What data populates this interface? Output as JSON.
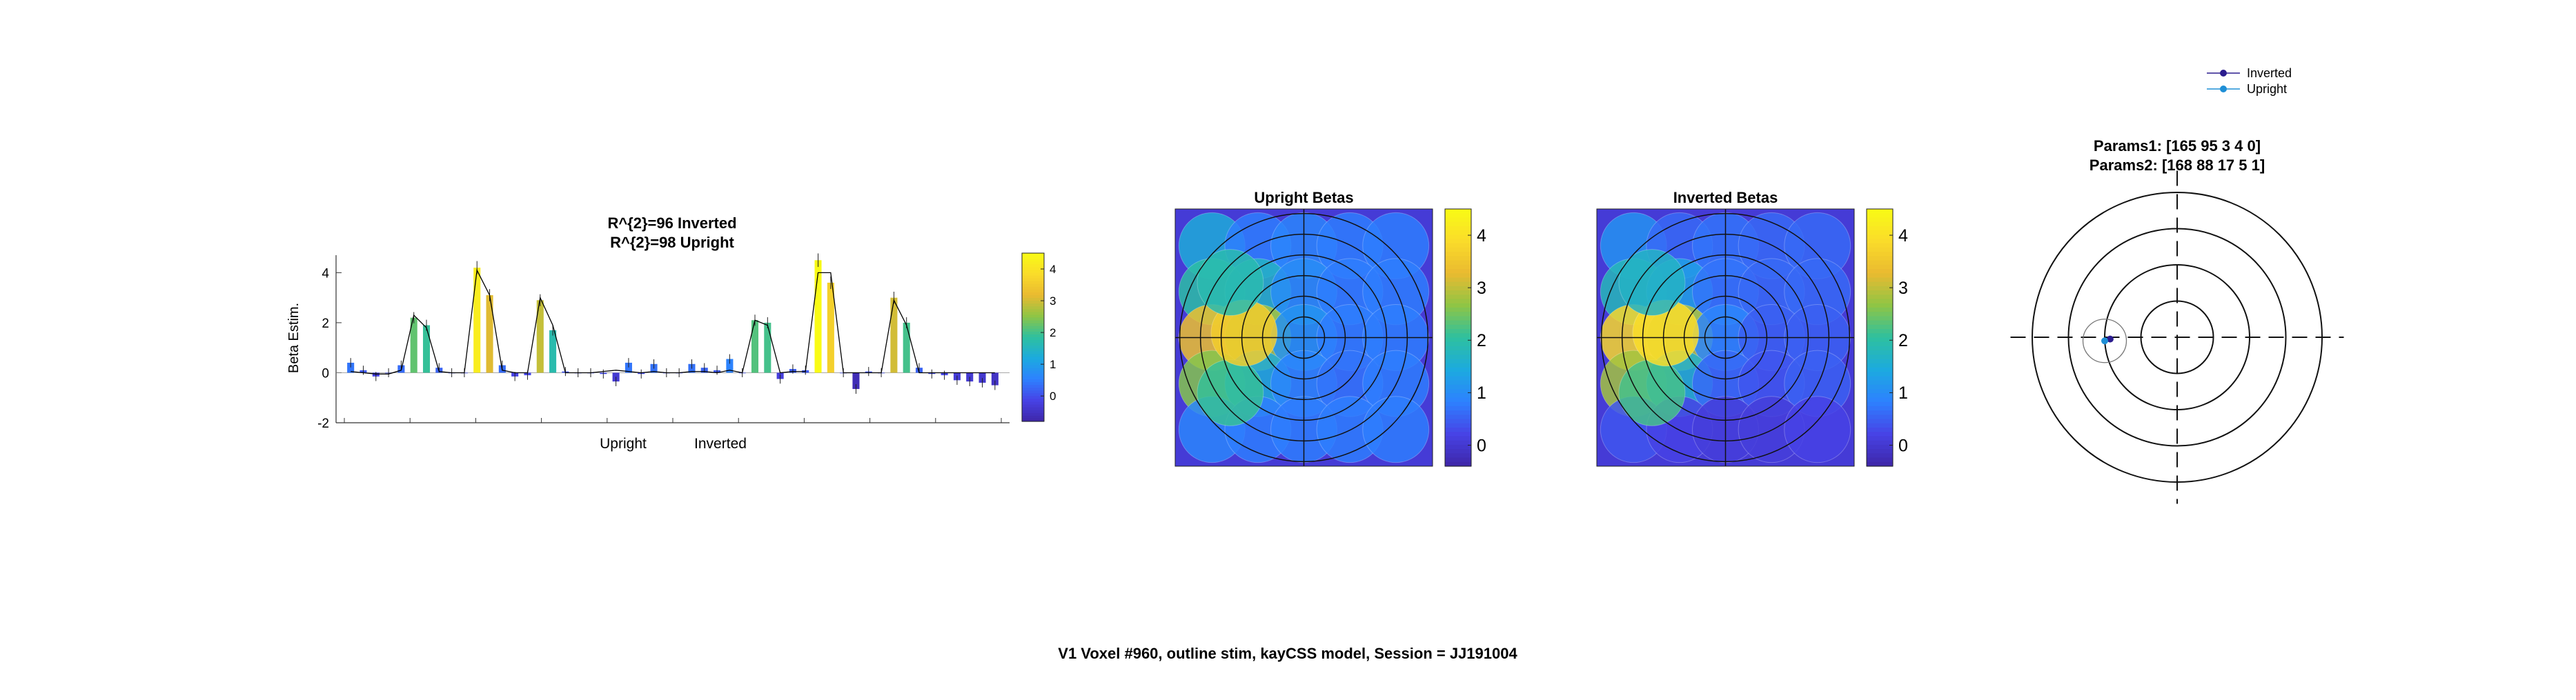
{
  "figure": {
    "suptitle": "V1 Voxel #960, outline stim, kayCSS model, Session = JJ191004"
  },
  "colors": {
    "parula": [
      "#3e26a8",
      "#4743e6",
      "#2d81ff",
      "#1caadf",
      "#2ec09f",
      "#8fc545",
      "#eaba30",
      "#fadc2a",
      "#f9fb15"
    ],
    "inverted_line": "#2b1c8e",
    "upright_line": "#1f8fd6",
    "fit_line": "#000000"
  },
  "chart_data": [
    {
      "type": "bar",
      "name": "beta-bars",
      "title_lines": [
        "R^{2}=96 Inverted",
        "R^{2}=98 Upright"
      ],
      "xlabel": "",
      "ylabel": "Beta Estim.",
      "ylim": [
        -2,
        4.7
      ],
      "yticks": [
        -2,
        0,
        2,
        4
      ],
      "group_labels": [
        "Upright",
        "Inverted"
      ],
      "colorbar": {
        "ticks": [
          0,
          1,
          2,
          3,
          4
        ],
        "clim": [
          -0.8,
          4.5
        ]
      },
      "values": [
        0.4,
        0.1,
        -0.15,
        0.0,
        0.3,
        2.2,
        1.9,
        0.2,
        0.0,
        0.0,
        4.2,
        3.1,
        0.3,
        -0.15,
        -0.1,
        2.9,
        1.7,
        0.05,
        0.0,
        0.0,
        -0.05,
        -0.35,
        0.4,
        -0.05,
        0.35,
        0.0,
        0.0,
        0.35,
        0.2,
        0.1,
        0.55,
        0.0,
        2.1,
        2.0,
        -0.25,
        0.15,
        0.1,
        4.5,
        3.6,
        0.0,
        -0.65,
        0.05,
        0.0,
        3.0,
        2.0,
        0.2,
        -0.05,
        -0.1,
        -0.3,
        -0.35,
        -0.4,
        -0.5
      ],
      "fit": [
        0.05,
        0.0,
        -0.05,
        -0.05,
        0.1,
        2.3,
        1.8,
        0.05,
        0.0,
        0.0,
        4.1,
        3.1,
        0.1,
        0.0,
        0.0,
        3.0,
        1.9,
        0.0,
        0.0,
        0.0,
        0.05,
        0.1,
        0.05,
        0.0,
        0.05,
        0.0,
        0.0,
        0.05,
        0.05,
        0.0,
        0.1,
        0.0,
        2.1,
        1.9,
        0.0,
        0.05,
        0.05,
        4.0,
        4.0,
        0.0,
        0.0,
        0.0,
        0.0,
        2.9,
        1.9,
        0.0,
        0.0,
        0.0,
        0.0,
        0.0,
        0.0,
        0.0
      ]
    },
    {
      "type": "heatmap",
      "name": "upright-betas",
      "title": "Upright Betas",
      "colorbar": {
        "ticks": [
          0,
          1,
          2,
          3,
          4
        ],
        "clim": [
          -0.4,
          4.5
        ]
      },
      "discs": [
        {
          "x": -2,
          "y": 2,
          "v": 1.5
        },
        {
          "x": -1,
          "y": 2,
          "v": 0.8
        },
        {
          "x": 0,
          "y": 2,
          "v": 0.9
        },
        {
          "x": 1,
          "y": 2,
          "v": 0.8
        },
        {
          "x": 2,
          "y": 2,
          "v": 0.8
        },
        {
          "x": -2,
          "y": 1,
          "v": 2.0
        },
        {
          "x": -1,
          "y": 1,
          "v": 1.7
        },
        {
          "x": 0,
          "y": 1,
          "v": 1.0
        },
        {
          "x": 1,
          "y": 1,
          "v": 0.8
        },
        {
          "x": 2,
          "y": 1,
          "v": 0.8
        },
        {
          "x": -2,
          "y": 0,
          "v": 3.4
        },
        {
          "x": -1,
          "y": 0,
          "v": 2.8
        },
        {
          "x": 0,
          "y": 0,
          "v": 1.1
        },
        {
          "x": 1,
          "y": 0,
          "v": 0.8
        },
        {
          "x": 2,
          "y": 0,
          "v": 0.8
        },
        {
          "x": -2,
          "y": -1,
          "v": 2.6
        },
        {
          "x": -1,
          "y": -1,
          "v": 1.5
        },
        {
          "x": 0,
          "y": -1,
          "v": 0.9
        },
        {
          "x": 1,
          "y": -1,
          "v": 0.7
        },
        {
          "x": 2,
          "y": -1,
          "v": 0.8
        },
        {
          "x": -2,
          "y": -2,
          "v": 0.9
        },
        {
          "x": -1,
          "y": -2,
          "v": 0.8
        },
        {
          "x": 0,
          "y": -2,
          "v": 0.8
        },
        {
          "x": 1,
          "y": -2,
          "v": 0.8
        },
        {
          "x": 2,
          "y": -2,
          "v": 0.8
        },
        {
          "x": -1.6,
          "y": -1.2,
          "v": 2.1
        },
        {
          "x": -1.3,
          "y": 0.1,
          "v": 3.6
        },
        {
          "x": -1.6,
          "y": 1.2,
          "v": 1.9
        }
      ]
    },
    {
      "type": "heatmap",
      "name": "inverted-betas",
      "title": "Inverted Betas",
      "colorbar": {
        "ticks": [
          0,
          1,
          2,
          3,
          4
        ],
        "clim": [
          -0.4,
          4.5
        ]
      },
      "discs": [
        {
          "x": -2,
          "y": 2,
          "v": 1.1
        },
        {
          "x": -1,
          "y": 2,
          "v": 0.6
        },
        {
          "x": 0,
          "y": 2,
          "v": 0.7
        },
        {
          "x": 1,
          "y": 2,
          "v": 0.6
        },
        {
          "x": 2,
          "y": 2,
          "v": 0.6
        },
        {
          "x": -2,
          "y": 1,
          "v": 1.8
        },
        {
          "x": -1,
          "y": 1,
          "v": 1.3
        },
        {
          "x": 0,
          "y": 1,
          "v": 0.7
        },
        {
          "x": 1,
          "y": 1,
          "v": 0.6
        },
        {
          "x": 2,
          "y": 1,
          "v": 0.6
        },
        {
          "x": -2,
          "y": 0,
          "v": 3.8
        },
        {
          "x": -1,
          "y": 0,
          "v": 2.9
        },
        {
          "x": 0,
          "y": 0,
          "v": 0.9
        },
        {
          "x": 1,
          "y": 0,
          "v": 0.5
        },
        {
          "x": 2,
          "y": 0,
          "v": 0.5
        },
        {
          "x": -2,
          "y": -1,
          "v": 2.8
        },
        {
          "x": -1,
          "y": -1,
          "v": 1.6
        },
        {
          "x": 0,
          "y": -1,
          "v": 0.6
        },
        {
          "x": 1,
          "y": -1,
          "v": 0.4
        },
        {
          "x": 2,
          "y": -1,
          "v": 0.5
        },
        {
          "x": -2,
          "y": -2,
          "v": 0.4
        },
        {
          "x": -1,
          "y": -2,
          "v": 0.2
        },
        {
          "x": 0,
          "y": -2,
          "v": 0.1
        },
        {
          "x": 1,
          "y": -2,
          "v": 0.1
        },
        {
          "x": 2,
          "y": -2,
          "v": 0.2
        },
        {
          "x": -1.6,
          "y": -1.2,
          "v": 2.2
        },
        {
          "x": -1.3,
          "y": 0.1,
          "v": 3.9
        },
        {
          "x": -1.6,
          "y": 1.2,
          "v": 1.7
        }
      ]
    },
    {
      "type": "scatter",
      "name": "prf-position",
      "title_lines": [
        "Params1: [165    95     3     4     0]",
        "Params2: [168    88    17     5     1]"
      ],
      "legend": [
        {
          "name": "Inverted",
          "color": "#2b1c8e"
        },
        {
          "name": "Upright",
          "color": "#1f8fd6"
        }
      ],
      "legend_position": "top-right",
      "rings": [
        1,
        2,
        3,
        4
      ],
      "xlim": [
        -4.6,
        4.6
      ],
      "ylim": [
        -4.6,
        4.6
      ],
      "points": [
        {
          "series": "Inverted",
          "x": -1.85,
          "y": -0.05,
          "r": 0.05
        },
        {
          "series": "Upright",
          "x": -2.0,
          "y": -0.1,
          "r": 0.6
        }
      ]
    }
  ]
}
